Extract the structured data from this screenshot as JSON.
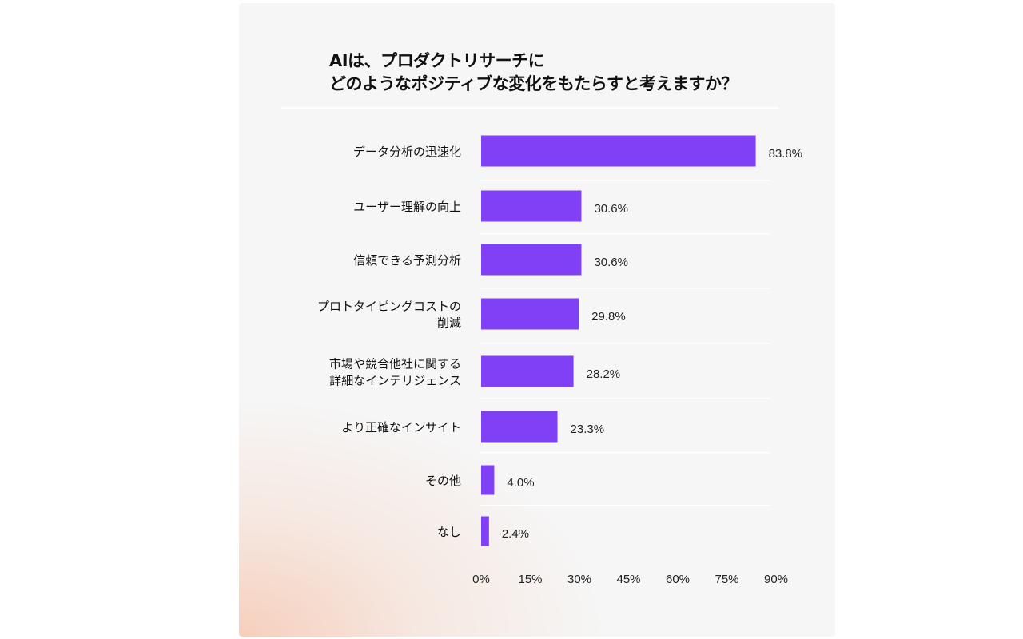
{
  "chart_data": {
    "type": "bar",
    "orientation": "horizontal",
    "title": [
      "AIは、プロダクトリサーチに",
      "どのようなポジティブな変化をもたらすと考えますか？"
    ],
    "categories": [
      [
        "データ分析の迅速化"
      ],
      [
        "ユーザー理解の向上"
      ],
      [
        "信頼できる予測分析"
      ],
      [
        "プロトタイピングコストの",
        "削減"
      ],
      [
        "市場や競合他社に関する",
        "詳細なインテリジェンス"
      ],
      [
        "より正確なインサイト"
      ],
      [
        "その他"
      ],
      [
        "なし"
      ]
    ],
    "values": [
      83.8,
      30.6,
      30.6,
      29.8,
      28.2,
      23.3,
      4.0,
      2.4
    ],
    "value_labels": [
      "83.8%",
      "30.6%",
      "30.6%",
      "29.8%",
      "28.2%",
      "23.3%",
      "4.0%",
      "2.4%"
    ],
    "xlim": [
      0,
      90
    ],
    "xticks": [
      "0%",
      "15%",
      "30%",
      "45%",
      "60%",
      "75%",
      "90%"
    ],
    "xtick_values": [
      0,
      15,
      30,
      45,
      60,
      75,
      90
    ],
    "xlabel": "",
    "ylabel": "",
    "bar_color": "#8040f5",
    "grid": false,
    "legend": "none"
  }
}
